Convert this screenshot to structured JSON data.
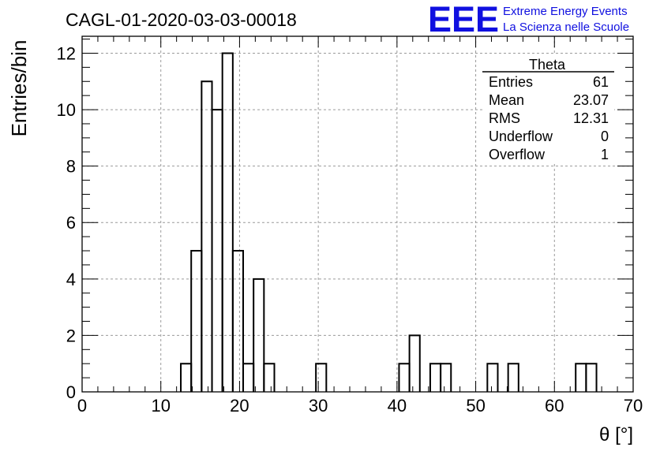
{
  "header": {
    "title": "CAGL-01-2020-03-03-00018",
    "logo_text": "EEE",
    "logo_line1": "Extreme Energy Events",
    "logo_line2": "La Scienza nelle Scuole",
    "logo_color": "#1010e0"
  },
  "stats": {
    "name": "Theta",
    "rows": [
      {
        "label": "Entries",
        "value": "61"
      },
      {
        "label": "Mean",
        "value": "23.07"
      },
      {
        "label": "RMS",
        "value": "12.31"
      },
      {
        "label": "Underflow",
        "value": "0"
      },
      {
        "label": "Overflow",
        "value": "1"
      }
    ]
  },
  "chart_data": {
    "type": "bar",
    "title": "CAGL-01-2020-03-03-00018",
    "xlabel": "θ [°]",
    "ylabel": "Entries/bin",
    "xlim": [
      0,
      70
    ],
    "ylim": [
      0,
      12.6
    ],
    "grid": true,
    "x_ticks": [
      0,
      10,
      20,
      30,
      40,
      50,
      60,
      70
    ],
    "y_ticks": [
      0,
      2,
      4,
      6,
      8,
      10,
      12
    ],
    "bin_width": 1.32,
    "bins": [
      {
        "x_low": 12.54,
        "value": 1
      },
      {
        "x_low": 13.86,
        "value": 5
      },
      {
        "x_low": 15.18,
        "value": 11
      },
      {
        "x_low": 16.5,
        "value": 10
      },
      {
        "x_low": 17.82,
        "value": 12
      },
      {
        "x_low": 19.14,
        "value": 5
      },
      {
        "x_low": 20.46,
        "value": 1
      },
      {
        "x_low": 21.78,
        "value": 4
      },
      {
        "x_low": 23.1,
        "value": 1
      },
      {
        "x_low": 29.7,
        "value": 1
      },
      {
        "x_low": 40.26,
        "value": 1
      },
      {
        "x_low": 41.58,
        "value": 2
      },
      {
        "x_low": 44.22,
        "value": 1
      },
      {
        "x_low": 45.54,
        "value": 1
      },
      {
        "x_low": 51.48,
        "value": 1
      },
      {
        "x_low": 54.12,
        "value": 1
      },
      {
        "x_low": 62.7,
        "value": 1
      },
      {
        "x_low": 64.02,
        "value": 1
      }
    ]
  }
}
